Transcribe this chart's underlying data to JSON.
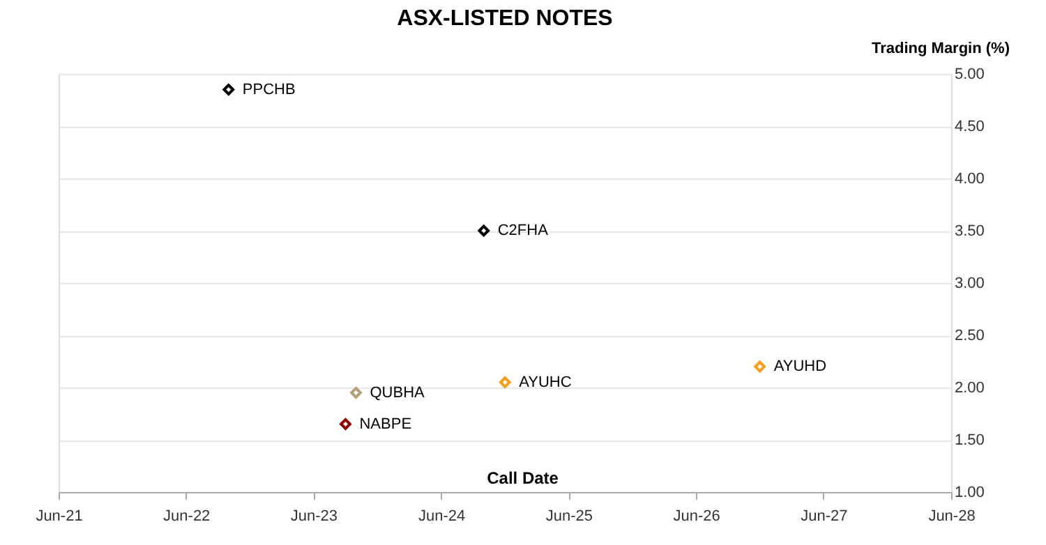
{
  "chart_data": {
    "type": "scatter",
    "title": "ASX-LISTED NOTES",
    "xlabel": "Call Date",
    "ylabel": "Trading Margin (%)",
    "xlim": [
      "2021-06",
      "2028-06"
    ],
    "xticks": [
      {
        "value": "2021-06",
        "label": "Jun-21"
      },
      {
        "value": "2022-06",
        "label": "Jun-22"
      },
      {
        "value": "2023-06",
        "label": "Jun-23"
      },
      {
        "value": "2024-06",
        "label": "Jun-24"
      },
      {
        "value": "2025-06",
        "label": "Jun-25"
      },
      {
        "value": "2026-06",
        "label": "Jun-26"
      },
      {
        "value": "2027-06",
        "label": "Jun-27"
      },
      {
        "value": "2028-06",
        "label": "Jun-28"
      }
    ],
    "ylim": [
      1.0,
      5.0
    ],
    "yticks": [
      {
        "value": 1.0,
        "label": "1.00"
      },
      {
        "value": 1.5,
        "label": "1.50"
      },
      {
        "value": 2.0,
        "label": "2.00"
      },
      {
        "value": 2.5,
        "label": "2.50"
      },
      {
        "value": 3.0,
        "label": "3.00"
      },
      {
        "value": 3.5,
        "label": "3.50"
      },
      {
        "value": 4.0,
        "label": "4.00"
      },
      {
        "value": 4.5,
        "label": "4.50"
      },
      {
        "value": 5.0,
        "label": "5.00"
      }
    ],
    "grid": "y",
    "legend": false,
    "marker": "diamond",
    "series": [
      {
        "name": "PPCHB",
        "color": "#000000",
        "x": [
          "2022-10"
        ],
        "values": [
          4.85
        ]
      },
      {
        "name": "C2FHA",
        "color": "#000000",
        "x": [
          "2024-10"
        ],
        "values": [
          3.5
        ]
      },
      {
        "name": "QUBHA",
        "color": "#b5a07a",
        "x": [
          "2023-10"
        ],
        "values": [
          1.95
        ]
      },
      {
        "name": "NABPE",
        "color": "#8b0000",
        "x": [
          "2023-09"
        ],
        "values": [
          1.65
        ]
      },
      {
        "name": "AYUHC",
        "color": "#f5a01a",
        "x": [
          "2024-12"
        ],
        "values": [
          2.05
        ]
      },
      {
        "name": "AYUHD",
        "color": "#f5a01a",
        "x": [
          "2026-12"
        ],
        "values": [
          2.2
        ]
      }
    ]
  }
}
